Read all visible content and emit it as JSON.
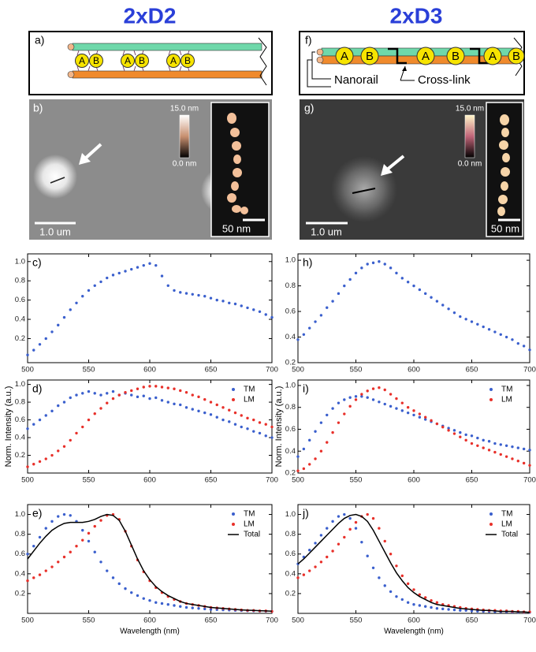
{
  "headers": {
    "left": "2xD2",
    "right": "2xD3"
  },
  "schematics": [
    {
      "label": "a)",
      "beads": [
        "A",
        "B",
        "A",
        "B",
        "A",
        "B"
      ]
    },
    {
      "label": "f)",
      "beads": [
        "A",
        "B",
        "A",
        "B",
        "A",
        "B"
      ],
      "annotations": [
        "Nanorail",
        "Cross-link"
      ]
    }
  ],
  "images": [
    {
      "label": "b)",
      "scale_bar": "1.0 um",
      "colorbar_max": "15.0 nm",
      "colorbar_min": "0.0 nm",
      "inset_scale": "50 nm"
    },
    {
      "label": "g)",
      "scale_bar": "1.0 um",
      "colorbar_max": "15.0 nm",
      "colorbar_min": "0.0 nm",
      "inset_scale": "50 nm"
    }
  ],
  "chart_data": [
    {
      "type": "scatter",
      "panel_label": "c)",
      "color": "#3a5fcd",
      "x": [
        500,
        505,
        510,
        515,
        520,
        525,
        530,
        535,
        540,
        545,
        550,
        555,
        560,
        565,
        570,
        575,
        580,
        585,
        590,
        595,
        600,
        605,
        610,
        615,
        620,
        625,
        630,
        635,
        640,
        645,
        650,
        655,
        660,
        665,
        670,
        675,
        680,
        685,
        690,
        695,
        700
      ],
      "values": [
        0.03,
        0.08,
        0.14,
        0.2,
        0.27,
        0.34,
        0.42,
        0.5,
        0.57,
        0.64,
        0.7,
        0.75,
        0.79,
        0.83,
        0.86,
        0.88,
        0.9,
        0.92,
        0.94,
        0.96,
        0.98,
        0.96,
        0.85,
        0.75,
        0.7,
        0.68,
        0.67,
        0.66,
        0.65,
        0.64,
        0.62,
        0.6,
        0.59,
        0.57,
        0.56,
        0.54,
        0.52,
        0.5,
        0.48,
        0.45,
        0.42
      ],
      "xlim": [
        500,
        700
      ],
      "ylim": [
        -0.05,
        1.08
      ],
      "xticks": [
        500,
        550,
        600,
        650,
        700
      ],
      "yticks": [
        0.2,
        0.4,
        0.6,
        0.8,
        {
          "value": 1,
          "label": "1.0"
        }
      ]
    },
    {
      "type": "scatter",
      "panel_label": "d)",
      "ylabel": "Norm. Intensity (a.u.)",
      "legend": "upper right",
      "x": [
        500,
        505,
        510,
        515,
        520,
        525,
        530,
        535,
        540,
        545,
        550,
        555,
        560,
        565,
        570,
        575,
        580,
        585,
        590,
        595,
        600,
        605,
        610,
        615,
        620,
        625,
        630,
        635,
        640,
        645,
        650,
        655,
        660,
        665,
        670,
        675,
        680,
        685,
        690,
        695,
        700
      ],
      "series": [
        {
          "name": "TM",
          "color": "#3a5fcd",
          "mode": "markers",
          "values": [
            0.5,
            0.55,
            0.6,
            0.65,
            0.7,
            0.76,
            0.8,
            0.85,
            0.88,
            0.9,
            0.92,
            0.9,
            0.88,
            0.9,
            0.92,
            0.88,
            0.9,
            0.88,
            0.86,
            0.87,
            0.84,
            0.85,
            0.82,
            0.8,
            0.78,
            0.77,
            0.74,
            0.72,
            0.7,
            0.68,
            0.66,
            0.63,
            0.6,
            0.58,
            0.55,
            0.52,
            0.5,
            0.47,
            0.45,
            0.42,
            0.4
          ]
        },
        {
          "name": "LM",
          "color": "#e8302a",
          "mode": "markers",
          "values": [
            0.07,
            0.1,
            0.13,
            0.16,
            0.2,
            0.25,
            0.3,
            0.37,
            0.45,
            0.52,
            0.6,
            0.67,
            0.73,
            0.79,
            0.84,
            0.88,
            0.91,
            0.93,
            0.95,
            0.97,
            0.98,
            0.98,
            0.97,
            0.96,
            0.95,
            0.93,
            0.91,
            0.88,
            0.86,
            0.83,
            0.8,
            0.77,
            0.74,
            0.71,
            0.68,
            0.65,
            0.62,
            0.6,
            0.57,
            0.55,
            0.52
          ]
        }
      ],
      "xlim": [
        500,
        700
      ],
      "ylim": [
        0,
        1.05
      ],
      "xticks": [
        500,
        550,
        600,
        650,
        700
      ],
      "yticks": [
        0.2,
        0.4,
        0.6,
        0.8,
        {
          "value": 1,
          "label": "1.0"
        }
      ]
    },
    {
      "type": "scatter",
      "panel_label": "e)",
      "xlabel": "Wavelength (nm)",
      "legend": "upper right",
      "x": [
        500,
        505,
        510,
        515,
        520,
        525,
        530,
        535,
        540,
        545,
        550,
        555,
        560,
        565,
        570,
        575,
        580,
        585,
        590,
        595,
        600,
        605,
        610,
        615,
        620,
        625,
        630,
        635,
        640,
        645,
        650,
        655,
        660,
        665,
        670,
        675,
        680,
        685,
        690,
        695,
        700
      ],
      "series": [
        {
          "name": "TM",
          "color": "#3a5fcd",
          "mode": "markers",
          "values": [
            0.6,
            0.68,
            0.77,
            0.86,
            0.93,
            0.98,
            1.0,
            0.99,
            0.93,
            0.84,
            0.73,
            0.62,
            0.52,
            0.43,
            0.36,
            0.3,
            0.25,
            0.21,
            0.18,
            0.15,
            0.13,
            0.11,
            0.1,
            0.09,
            0.08,
            0.07,
            0.06,
            0.055,
            0.05,
            0.045,
            0.04,
            0.038,
            0.035,
            0.033,
            0.03,
            0.028,
            0.026,
            0.025,
            0.023,
            0.022,
            0.02
          ]
        },
        {
          "name": "LM",
          "color": "#e8302a",
          "mode": "markers",
          "values": [
            0.33,
            0.36,
            0.39,
            0.43,
            0.47,
            0.52,
            0.57,
            0.62,
            0.68,
            0.74,
            0.81,
            0.88,
            0.94,
            0.99,
            1.0,
            0.95,
            0.83,
            0.68,
            0.54,
            0.42,
            0.33,
            0.26,
            0.21,
            0.17,
            0.14,
            0.12,
            0.1,
            0.09,
            0.08,
            0.07,
            0.06,
            0.055,
            0.05,
            0.045,
            0.04,
            0.035,
            0.03,
            0.03,
            0.025,
            0.025,
            0.02
          ]
        },
        {
          "name": "Total",
          "color": "#000000",
          "mode": "line",
          "values": [
            0.55,
            0.63,
            0.71,
            0.78,
            0.84,
            0.88,
            0.91,
            0.92,
            0.92,
            0.92,
            0.93,
            0.95,
            0.98,
            1.0,
            0.99,
            0.94,
            0.83,
            0.69,
            0.55,
            0.43,
            0.34,
            0.27,
            0.22,
            0.18,
            0.15,
            0.12,
            0.1,
            0.09,
            0.08,
            0.07,
            0.06,
            0.055,
            0.05,
            0.045,
            0.04,
            0.035,
            0.032,
            0.03,
            0.027,
            0.025,
            0.022
          ]
        }
      ],
      "xlim": [
        500,
        700
      ],
      "ylim": [
        0,
        1.1
      ],
      "xticks": [
        500,
        550,
        600,
        650,
        700
      ],
      "yticks": [
        0.2,
        0.4,
        0.6,
        0.8,
        {
          "value": 1,
          "label": "1.0"
        }
      ]
    },
    {
      "type": "scatter",
      "panel_label": "h)",
      "color": "#3a5fcd",
      "x": [
        500,
        505,
        510,
        515,
        520,
        525,
        530,
        535,
        540,
        545,
        550,
        555,
        560,
        565,
        570,
        575,
        580,
        585,
        590,
        595,
        600,
        605,
        610,
        615,
        620,
        625,
        630,
        635,
        640,
        645,
        650,
        655,
        660,
        665,
        670,
        675,
        680,
        685,
        690,
        695,
        700
      ],
      "values": [
        0.38,
        0.42,
        0.47,
        0.52,
        0.57,
        0.63,
        0.68,
        0.74,
        0.8,
        0.85,
        0.9,
        0.94,
        0.97,
        0.98,
        0.99,
        0.97,
        0.94,
        0.9,
        0.86,
        0.83,
        0.8,
        0.77,
        0.74,
        0.71,
        0.68,
        0.65,
        0.62,
        0.59,
        0.56,
        0.54,
        0.52,
        0.5,
        0.48,
        0.46,
        0.44,
        0.42,
        0.4,
        0.38,
        0.35,
        0.33,
        0.3
      ],
      "xlim": [
        500,
        700
      ],
      "ylim": [
        0.2,
        1.05
      ],
      "xticks": [
        500,
        550,
        600,
        650,
        700
      ],
      "yticks": [
        0.2,
        0.4,
        0.6,
        0.8,
        {
          "value": 1,
          "label": "1.0"
        }
      ]
    },
    {
      "type": "scatter",
      "panel_label": "i)",
      "ylabel": "Norm. Intensity (a.u.)",
      "legend": "upper right",
      "x": [
        500,
        505,
        510,
        515,
        520,
        525,
        530,
        535,
        540,
        545,
        550,
        555,
        560,
        565,
        570,
        575,
        580,
        585,
        590,
        595,
        600,
        605,
        610,
        615,
        620,
        625,
        630,
        635,
        640,
        645,
        650,
        655,
        660,
        665,
        670,
        675,
        680,
        685,
        690,
        695,
        700
      ],
      "series": [
        {
          "name": "TM",
          "color": "#3a5fcd",
          "mode": "markers",
          "values": [
            0.35,
            0.42,
            0.5,
            0.58,
            0.66,
            0.73,
            0.79,
            0.84,
            0.87,
            0.89,
            0.9,
            0.9,
            0.89,
            0.87,
            0.85,
            0.83,
            0.81,
            0.79,
            0.77,
            0.75,
            0.73,
            0.71,
            0.69,
            0.67,
            0.65,
            0.63,
            0.61,
            0.59,
            0.57,
            0.55,
            0.54,
            0.52,
            0.5,
            0.49,
            0.47,
            0.46,
            0.45,
            0.44,
            0.43,
            0.42,
            0.41
          ]
        },
        {
          "name": "LM",
          "color": "#e8302a",
          "mode": "markers",
          "values": [
            0.22,
            0.24,
            0.28,
            0.33,
            0.4,
            0.48,
            0.57,
            0.66,
            0.74,
            0.81,
            0.87,
            0.92,
            0.95,
            0.97,
            0.98,
            0.96,
            0.92,
            0.88,
            0.84,
            0.8,
            0.77,
            0.74,
            0.71,
            0.68,
            0.65,
            0.62,
            0.59,
            0.56,
            0.53,
            0.5,
            0.47,
            0.45,
            0.43,
            0.41,
            0.39,
            0.37,
            0.35,
            0.33,
            0.31,
            0.29,
            0.27
          ]
        }
      ],
      "xlim": [
        500,
        700
      ],
      "ylim": [
        0.2,
        1.05
      ],
      "xticks": [
        500,
        550,
        600,
        650,
        700
      ],
      "yticks": [
        0.2,
        0.4,
        0.6,
        0.8,
        {
          "value": 1,
          "label": "1.0"
        }
      ]
    },
    {
      "type": "scatter",
      "panel_label": "j)",
      "xlabel": "Wavelength (nm)",
      "legend": "upper right",
      "x": [
        500,
        505,
        510,
        515,
        520,
        525,
        530,
        535,
        540,
        545,
        550,
        555,
        560,
        565,
        570,
        575,
        580,
        585,
        590,
        595,
        600,
        605,
        610,
        615,
        620,
        625,
        630,
        635,
        640,
        645,
        650,
        655,
        660,
        665,
        670,
        675,
        680,
        685,
        690,
        695,
        700
      ],
      "series": [
        {
          "name": "TM",
          "color": "#3a5fcd",
          "mode": "markers",
          "values": [
            0.5,
            0.57,
            0.64,
            0.71,
            0.79,
            0.86,
            0.93,
            0.98,
            1.0,
            0.96,
            0.86,
            0.72,
            0.58,
            0.46,
            0.36,
            0.28,
            0.22,
            0.17,
            0.14,
            0.11,
            0.09,
            0.08,
            0.07,
            0.06,
            0.05,
            0.045,
            0.04,
            0.035,
            0.03,
            0.03,
            0.025,
            0.022,
            0.02,
            0.019,
            0.017,
            0.016,
            0.015,
            0.013,
            0.012,
            0.011,
            0.01
          ]
        },
        {
          "name": "LM",
          "color": "#e8302a",
          "mode": "markers",
          "values": [
            0.36,
            0.39,
            0.43,
            0.47,
            0.52,
            0.57,
            0.63,
            0.7,
            0.77,
            0.85,
            0.92,
            0.98,
            1.0,
            0.96,
            0.86,
            0.73,
            0.6,
            0.48,
            0.38,
            0.3,
            0.24,
            0.19,
            0.16,
            0.13,
            0.11,
            0.09,
            0.08,
            0.07,
            0.06,
            0.05,
            0.045,
            0.04,
            0.035,
            0.03,
            0.03,
            0.025,
            0.025,
            0.02,
            0.02,
            0.015,
            0.015
          ]
        },
        {
          "name": "Total",
          "color": "#000000",
          "mode": "line",
          "values": [
            0.5,
            0.55,
            0.61,
            0.67,
            0.73,
            0.79,
            0.85,
            0.91,
            0.96,
            0.99,
            1.0,
            0.98,
            0.93,
            0.84,
            0.73,
            0.62,
            0.51,
            0.41,
            0.33,
            0.26,
            0.21,
            0.17,
            0.14,
            0.11,
            0.09,
            0.08,
            0.07,
            0.06,
            0.05,
            0.045,
            0.04,
            0.035,
            0.03,
            0.03,
            0.025,
            0.02,
            0.02,
            0.02,
            0.015,
            0.015,
            0.01
          ]
        }
      ],
      "xlim": [
        500,
        700
      ],
      "ylim": [
        0,
        1.1
      ],
      "xticks": [
        500,
        550,
        600,
        650,
        700
      ],
      "yticks": [
        0.2,
        0.4,
        0.6,
        0.8,
        {
          "value": 1,
          "label": "1.0"
        }
      ]
    }
  ]
}
